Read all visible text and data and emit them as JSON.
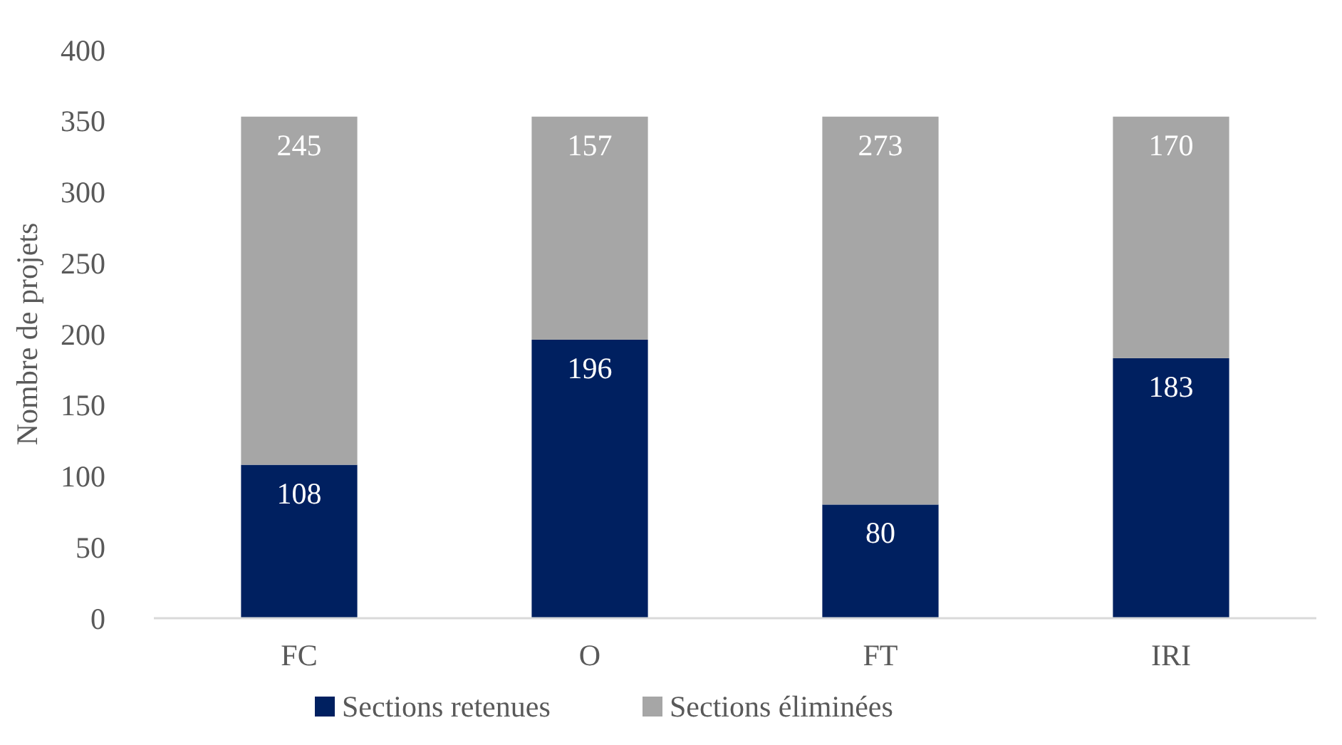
{
  "chart_data": {
    "type": "bar",
    "stacked": true,
    "ylabel": "Nombre de projets",
    "categories": [
      "FC",
      "O",
      "FT",
      "IRI"
    ],
    "series": [
      {
        "name": "Sections retenues",
        "color": "#002060",
        "values": [
          108,
          196,
          80,
          183
        ]
      },
      {
        "name": "Sections éliminées",
        "color": "#a6a6a6",
        "values": [
          245,
          157,
          273,
          170
        ]
      }
    ],
    "ylim": [
      0,
      400
    ],
    "yticks": [
      0,
      50,
      100,
      150,
      200,
      250,
      300,
      350,
      400
    ],
    "grid": false,
    "legend": "bottom",
    "data_labels": true
  }
}
